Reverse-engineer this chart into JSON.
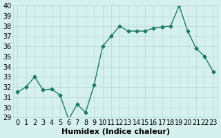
{
  "xlabel": "Humidex (Indice chaleur)",
  "ylabel": "",
  "x": [
    0,
    1,
    2,
    3,
    4,
    5,
    6,
    7,
    8,
    9,
    10,
    11,
    12,
    13,
    14,
    15,
    16,
    17,
    18,
    19,
    20,
    21,
    22,
    23
  ],
  "y": [
    31.5,
    32.0,
    33.0,
    31.7,
    31.8,
    31.2,
    28.8,
    30.3,
    29.5,
    32.2,
    36.0,
    37.0,
    38.0,
    37.5,
    37.5,
    37.5,
    37.8,
    37.9,
    38.0,
    40.0,
    37.5,
    35.8,
    35.0,
    33.5
  ],
  "line_color": "#1a7a5e",
  "marker_color": "#1a7a5e",
  "bg_color": "#d6f0ee",
  "grid_color": "#b0d8d4",
  "ylim": [
    29,
    40
  ],
  "xlim": [
    0,
    23
  ],
  "yticks": [
    29,
    30,
    31,
    32,
    33,
    34,
    35,
    36,
    37,
    38,
    39,
    40
  ],
  "xticks": [
    0,
    1,
    2,
    3,
    4,
    5,
    6,
    7,
    8,
    9,
    10,
    11,
    12,
    13,
    14,
    15,
    16,
    17,
    18,
    19,
    20,
    21,
    22,
    23
  ],
  "title_fontsize": 8,
  "label_fontsize": 8,
  "tick_fontsize": 7
}
